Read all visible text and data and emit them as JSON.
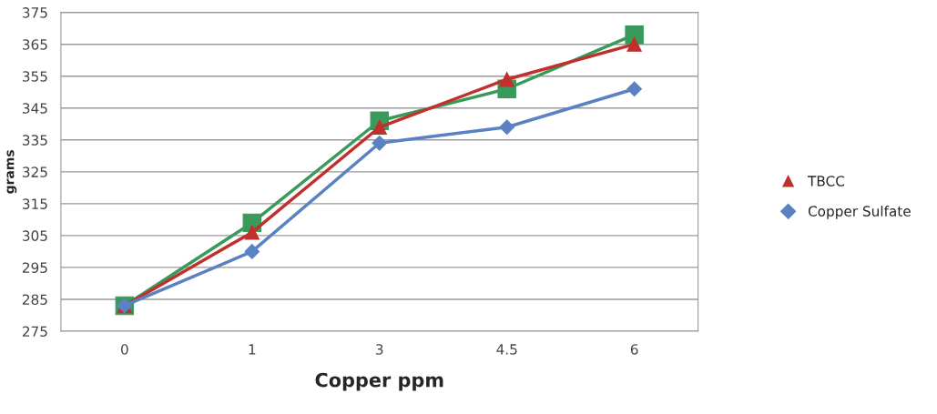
{
  "chart_data": {
    "type": "line",
    "xlabel": "Copper ppm",
    "ylabel": "grams",
    "categories": [
      "0",
      "1",
      "3",
      "4.5",
      "6"
    ],
    "series": [
      {
        "color": "#3a9a5c",
        "marker": "square",
        "values": [
          283,
          309,
          341,
          351,
          368
        ]
      },
      {
        "name": "TBCC",
        "color": "#c0302c",
        "marker": "triangle",
        "values": [
          283,
          306,
          339,
          354,
          365
        ]
      },
      {
        "name": "Copper Sulfate",
        "color": "#5a82c2",
        "marker": "diamond",
        "values": [
          283,
          300,
          334,
          339,
          351
        ]
      }
    ],
    "ylim": [
      275,
      375
    ],
    "yticks": [
      275,
      285,
      295,
      305,
      315,
      325,
      335,
      345,
      355,
      365,
      375
    ],
    "grid": "y",
    "legend": "right",
    "line_style": "solid"
  }
}
